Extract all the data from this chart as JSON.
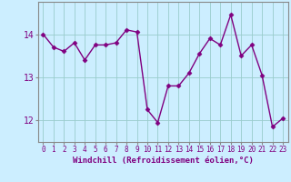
{
  "x": [
    0,
    1,
    2,
    3,
    4,
    5,
    6,
    7,
    8,
    9,
    10,
    11,
    12,
    13,
    14,
    15,
    16,
    17,
    18,
    19,
    20,
    21,
    22,
    23
  ],
  "y": [
    14.0,
    13.7,
    13.6,
    13.8,
    13.4,
    13.75,
    13.75,
    13.8,
    14.1,
    14.05,
    12.25,
    11.95,
    12.8,
    12.8,
    13.1,
    13.55,
    13.9,
    13.75,
    14.45,
    13.5,
    13.75,
    13.05,
    11.85,
    12.05
  ],
  "line_color": "#800080",
  "marker": "D",
  "marker_size": 2.5,
  "bg_color": "#cceeff",
  "grid_color": "#99cccc",
  "xlabel": "Windchill (Refroidissement éolien,°C)",
  "xlabel_fontsize": 6.5,
  "xtick_labels": [
    "0",
    "1",
    "2",
    "3",
    "4",
    "5",
    "6",
    "7",
    "8",
    "9",
    "10",
    "11",
    "12",
    "13",
    "14",
    "15",
    "16",
    "17",
    "18",
    "19",
    "20",
    "21",
    "22",
    "23"
  ],
  "ytick_labels": [
    "12",
    "13",
    "14"
  ],
  "yticks": [
    12,
    13,
    14
  ],
  "ylim": [
    11.5,
    14.75
  ],
  "xlim": [
    -0.5,
    23.5
  ],
  "tick_color": "#800080",
  "xtick_fontsize": 5.5,
  "ytick_fontsize": 7,
  "spine_color": "#888888",
  "linewidth": 1.0
}
